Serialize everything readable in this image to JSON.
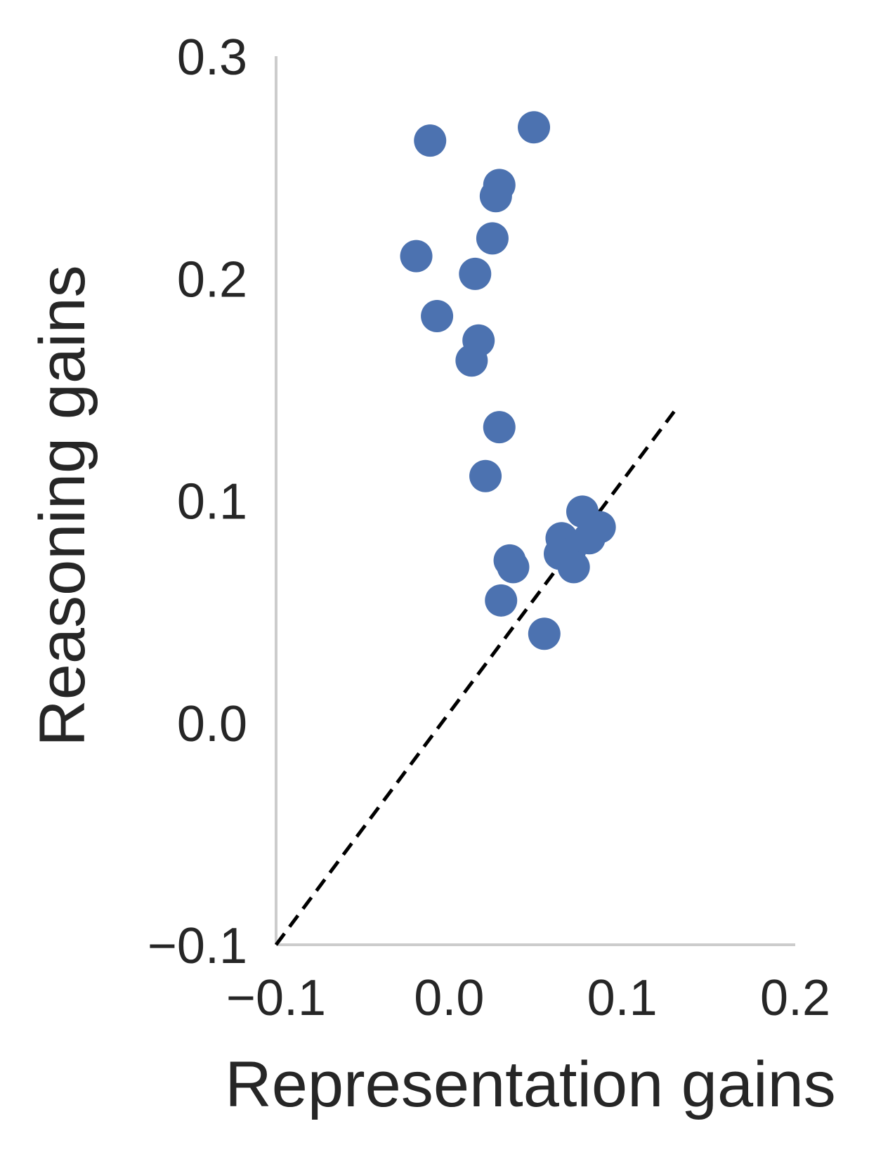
{
  "chart_data": {
    "type": "scatter",
    "title": "",
    "xlabel": "Representation gains",
    "ylabel": "Reasoning gains",
    "xlim": [
      -0.1,
      0.2
    ],
    "ylim": [
      -0.1,
      0.3
    ],
    "xticks": [
      -0.1,
      0.0,
      0.1,
      0.2
    ],
    "yticks": [
      -0.1,
      0.0,
      0.1,
      0.2,
      0.3
    ],
    "xtick_labels": [
      "−0.1",
      "0.0",
      "0.1",
      "0.2"
    ],
    "ytick_labels": [
      "−0.1",
      "0.0",
      "0.1",
      "0.2",
      "0.3"
    ],
    "grid": false,
    "reference_line": {
      "style": "dashed",
      "color": "#000000",
      "from": [
        -0.1,
        -0.1
      ],
      "to": [
        0.13,
        0.14
      ]
    },
    "series": [
      {
        "color": "#4c72b0",
        "x": [
          -0.011,
          0.049,
          0.029,
          0.027,
          0.025,
          -0.019,
          0.015,
          -0.007,
          0.017,
          0.013,
          0.029,
          0.021,
          0.077,
          0.087,
          0.081,
          0.065,
          0.07,
          0.064,
          0.072,
          0.035,
          0.037,
          0.03,
          0.055
        ],
        "y": [
          0.262,
          0.268,
          0.242,
          0.237,
          0.218,
          0.21,
          0.202,
          0.183,
          0.172,
          0.163,
          0.133,
          0.111,
          0.095,
          0.088,
          0.083,
          0.083,
          0.078,
          0.076,
          0.07,
          0.073,
          0.07,
          0.055,
          0.04
        ]
      }
    ]
  }
}
